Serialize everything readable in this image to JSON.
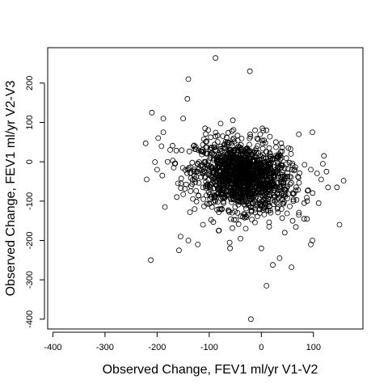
{
  "chart_data": {
    "type": "scatter",
    "title": "",
    "xlabel": "Observed Change, FEV1 ml/yr V1-V2",
    "ylabel": "Observed Change, FEV1 ml/yr V2-V3",
    "xlim": [
      -410,
      195
    ],
    "ylim": [
      -425,
      290
    ],
    "xticks": [
      -400,
      -300,
      -200,
      -100,
      0,
      100
    ],
    "yticks": [
      -400,
      -300,
      -200,
      -100,
      0,
      100,
      200
    ],
    "xtick_labels": [
      "-400",
      "-300",
      "-200",
      "-100",
      "0",
      "100"
    ],
    "ytick_labels": [
      "-400",
      "-300",
      "-200",
      "-100",
      "0",
      "100",
      "200"
    ],
    "grid": false,
    "marker": "open-circle",
    "cluster": {
      "center": [
        -35,
        -38
      ],
      "sd": [
        45,
        45
      ],
      "approx_count": 1500,
      "note": "dense central cloud of points; representative subset rendered"
    },
    "outlier_points": [
      [
        -88,
        264
      ],
      [
        -22,
        230
      ],
      [
        -140,
        210
      ],
      [
        -142,
        160
      ],
      [
        -210,
        125
      ],
      [
        -150,
        110
      ],
      [
        -188,
        110
      ],
      [
        -198,
        60
      ],
      [
        -222,
        47
      ],
      [
        -188,
        75
      ],
      [
        -180,
        0
      ],
      [
        -200,
        -20
      ],
      [
        -190,
        -35
      ],
      [
        -220,
        -45
      ],
      [
        -185,
        -115
      ],
      [
        -212,
        -250
      ],
      [
        -155,
        -190
      ],
      [
        -158,
        -225
      ],
      [
        -140,
        -200
      ],
      [
        -122,
        -210
      ],
      [
        -112,
        -160
      ],
      [
        -128,
        -120
      ],
      [
        -160,
        -55
      ],
      [
        -168,
        -15
      ],
      [
        -130,
        40
      ],
      [
        -175,
        30
      ],
      [
        -108,
        85
      ],
      [
        -105,
        52
      ],
      [
        -78,
        97
      ],
      [
        -12,
        80
      ],
      [
        2,
        85
      ],
      [
        10,
        80
      ],
      [
        -2,
        70
      ],
      [
        28,
        50
      ],
      [
        52,
        35
      ],
      [
        72,
        70
      ],
      [
        98,
        75
      ],
      [
        120,
        15
      ],
      [
        118,
        -5
      ],
      [
        125,
        -25
      ],
      [
        115,
        -45
      ],
      [
        95,
        -20
      ],
      [
        128,
        -65
      ],
      [
        145,
        -65
      ],
      [
        158,
        -48
      ],
      [
        150,
        -160
      ],
      [
        110,
        -105
      ],
      [
        88,
        -100
      ],
      [
        82,
        -145
      ],
      [
        72,
        -135
      ],
      [
        60,
        -150
      ],
      [
        45,
        -180
      ],
      [
        98,
        -200
      ],
      [
        95,
        -210
      ],
      [
        58,
        -268
      ],
      [
        35,
        -245
      ],
      [
        22,
        -262
      ],
      [
        0,
        -220
      ],
      [
        10,
        -315
      ],
      [
        -20,
        -400
      ],
      [
        -60,
        -220
      ],
      [
        -40,
        -195
      ],
      [
        -82,
        -175
      ],
      [
        -30,
        -170
      ],
      [
        15,
        -165
      ]
    ]
  }
}
